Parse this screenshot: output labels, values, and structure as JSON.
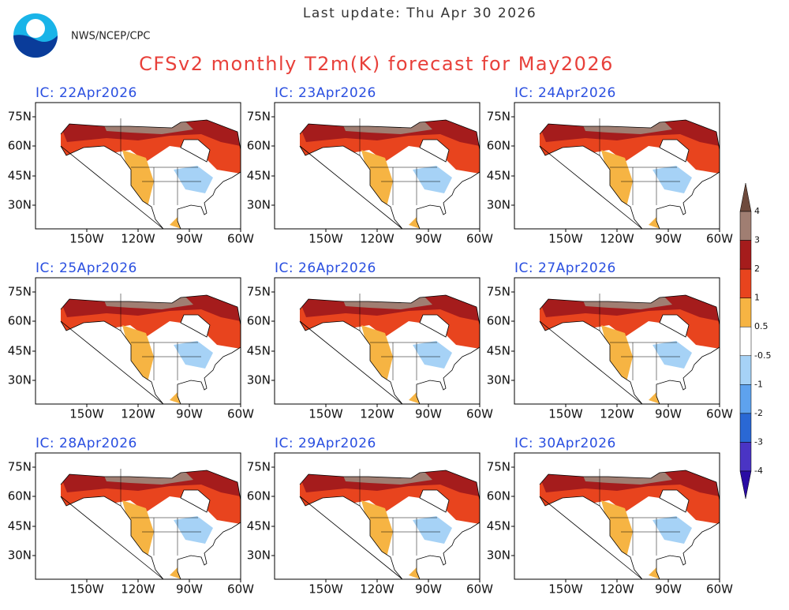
{
  "header": {
    "update": "Last update: Thu Apr 30 2026",
    "agency": "NWS/NCEP/CPC",
    "title": "CFSv2 monthly T2m(K) forecast for May2026"
  },
  "panels": [
    {
      "title": "IC: 22Apr2026"
    },
    {
      "title": "IC: 23Apr2026"
    },
    {
      "title": "IC: 24Apr2026"
    },
    {
      "title": "IC: 25Apr2026"
    },
    {
      "title": "IC: 26Apr2026"
    },
    {
      "title": "IC: 27Apr2026"
    },
    {
      "title": "IC: 28Apr2026"
    },
    {
      "title": "IC: 29Apr2026"
    },
    {
      "title": "IC: 30Apr2026"
    }
  ],
  "lat_labels": [
    "75N",
    "60N",
    "45N",
    "30N"
  ],
  "lon_labels": [
    "150W",
    "120W",
    "90W",
    "60W"
  ],
  "colorbar": {
    "labels": [
      "4",
      "3",
      "2",
      "1",
      "0.5",
      "-0.5",
      "-1",
      "-2",
      "-3",
      "-4"
    ],
    "colors": [
      "#6e4a3c",
      "#a07e72",
      "#a51c1c",
      "#e8441e",
      "#f6b443",
      "#ffffff",
      "#a6d2f6",
      "#5ea2ee",
      "#2a68d4",
      "#4a34c4",
      "#2a0ca4"
    ]
  }
}
